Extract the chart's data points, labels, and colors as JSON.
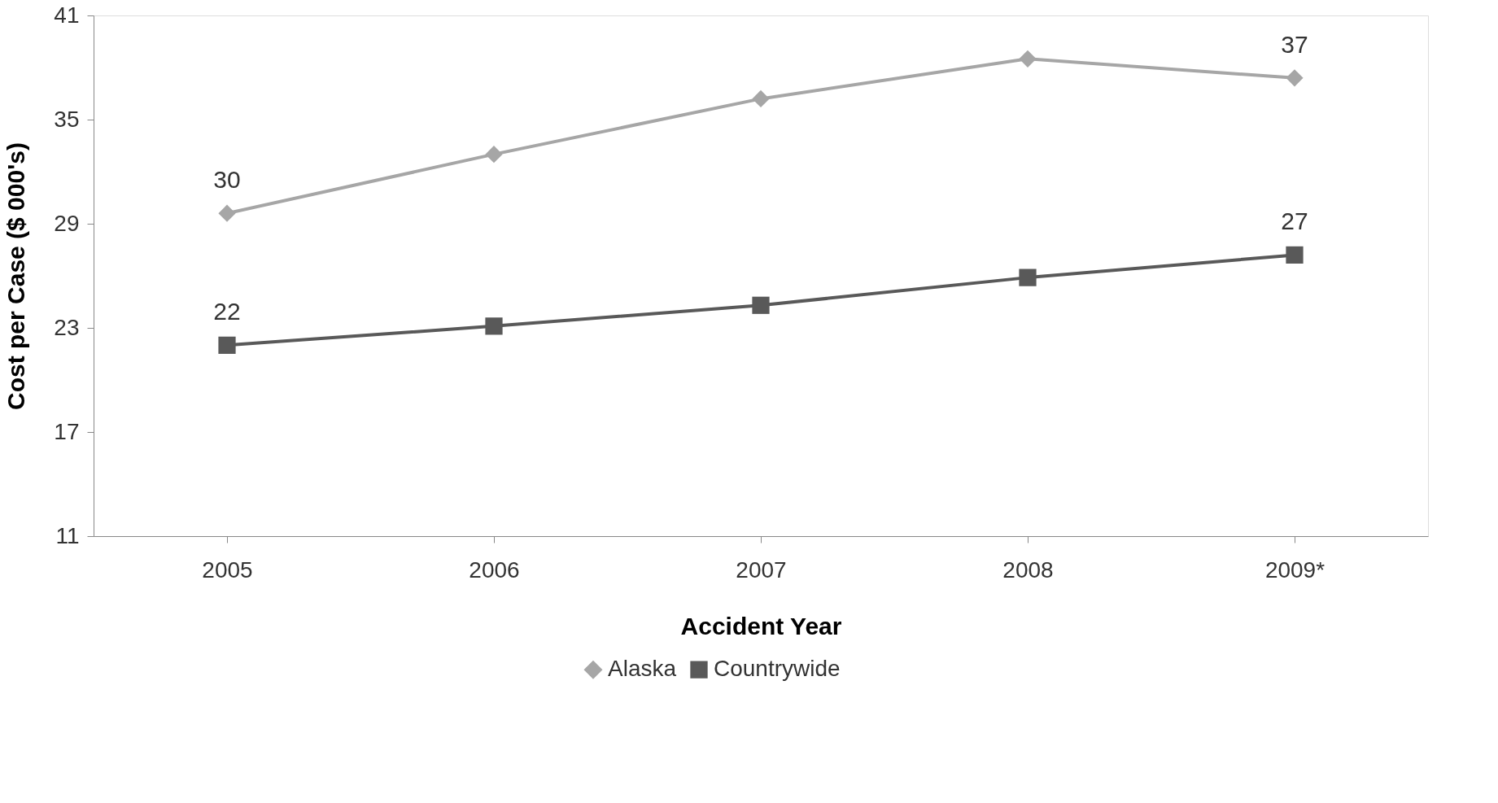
{
  "chart_data": {
    "type": "line",
    "xlabel": "Accident Year",
    "ylabel": "Cost per Case ($ 000's)",
    "categories": [
      "2005",
      "2006",
      "2007",
      "2008",
      "2009*"
    ],
    "series": [
      {
        "name": "Alaska",
        "color": "#a6a6a6",
        "marker": "diamond",
        "values": [
          29.6,
          33.0,
          36.2,
          38.5,
          37.4
        ],
        "value_labels": [
          "30",
          null,
          null,
          null,
          "37"
        ]
      },
      {
        "name": "Countrywide",
        "color": "#595959",
        "marker": "square",
        "values": [
          22.0,
          23.1,
          24.3,
          25.9,
          27.2
        ],
        "value_labels": [
          "22",
          null,
          null,
          null,
          "27"
        ]
      }
    ],
    "ylim": [
      11,
      41
    ],
    "yticks": [
      11,
      17,
      23,
      29,
      35,
      41
    ],
    "grid": false,
    "legend": "bottom"
  }
}
